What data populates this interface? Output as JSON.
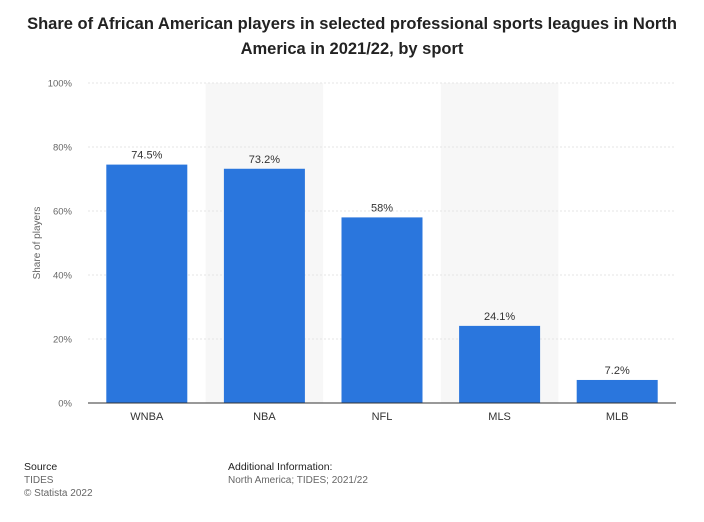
{
  "chart_data": {
    "type": "bar",
    "title": "Share of African American players in selected professional sports leagues in North America in 2021/22, by sport",
    "categories": [
      "WNBA",
      "NBA",
      "NFL",
      "MLS",
      "MLB"
    ],
    "values": [
      74.5,
      73.2,
      58,
      24.1,
      7.2
    ],
    "data_labels": [
      "74.5%",
      "73.2%",
      "58%",
      "24.1%",
      "7.2%"
    ],
    "xlabel": "",
    "ylabel": "Share of players",
    "ylim": [
      0,
      100
    ],
    "yticks": [
      0,
      20,
      40,
      60,
      80,
      100
    ],
    "ytick_labels": [
      "0%",
      "20%",
      "40%",
      "60%",
      "80%",
      "100%"
    ],
    "grid": true,
    "bar_color": "#2a76dd"
  },
  "footer": {
    "source_heading": "Source",
    "source": "TIDES",
    "copyright": "© Statista 2022",
    "additional_heading": "Additional Information:",
    "additional": "North America; TIDES; 2021/22"
  }
}
